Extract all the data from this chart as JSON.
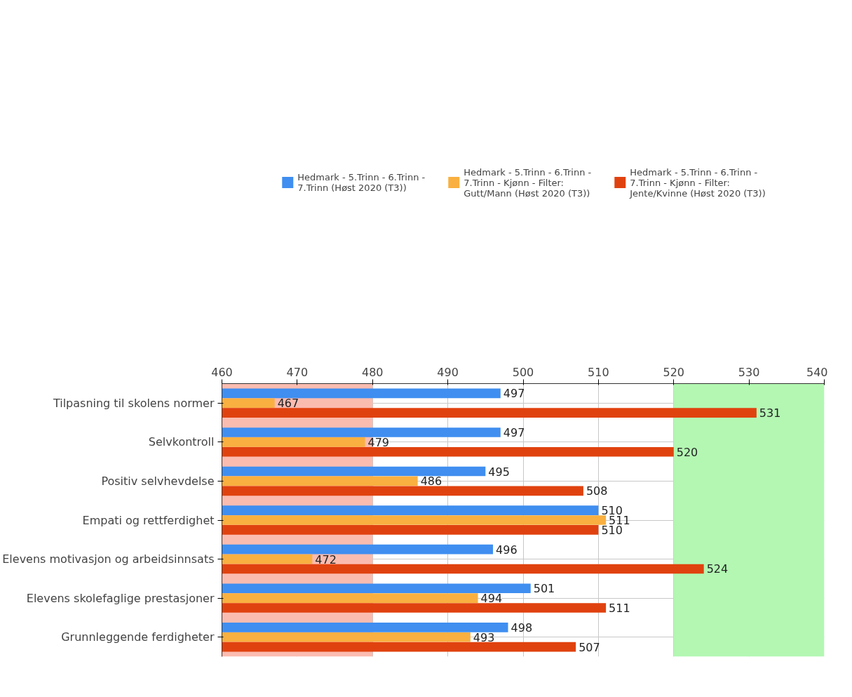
{
  "chart_data": {
    "type": "bar",
    "orientation": "horizontal",
    "categories": [
      "Tilpasning til skolens normer",
      "Selvkontroll",
      "Positiv selvhevdelse",
      "Empati og rettferdighet",
      "Elevens motivasjon og arbeidsinnsats",
      "Elevens skolefaglige prestasjoner",
      "Grunnleggende ferdigheter"
    ],
    "series": [
      {
        "name": "Hedmark - 5.Trinn - 6.Trinn - 7.Trinn (Høst 2020 (T3))",
        "color": "#3f8ef0",
        "values": [
          497,
          497,
          495,
          510,
          496,
          501,
          498
        ]
      },
      {
        "name": "Hedmark - 5.Trinn - 6.Trinn - 7.Trinn - Kjønn - Filter: Gutt/Mann (Høst 2020 (T3))",
        "color": "#f9b040",
        "values": [
          467,
          479,
          486,
          511,
          472,
          494,
          493
        ]
      },
      {
        "name": "Hedmark - 5.Trinn - 6.Trinn - 7.Trinn - Kjønn - Filter: Jente/Kvinne (Høst 2020 (T3))",
        "color": "#e0420f",
        "values": [
          531,
          520,
          508,
          510,
          524,
          511,
          507
        ]
      }
    ],
    "xlim": [
      460,
      540
    ],
    "xticks": [
      460,
      470,
      480,
      490,
      500,
      510,
      520,
      530,
      540
    ],
    "bands": [
      {
        "axis": "x",
        "from": 460,
        "to": 480,
        "color": "#fbbcb0"
      },
      {
        "axis": "x",
        "from": 520,
        "to": 540,
        "color": "#b3f7b3"
      }
    ],
    "data_labels": true,
    "grid": true,
    "legend": "top"
  }
}
